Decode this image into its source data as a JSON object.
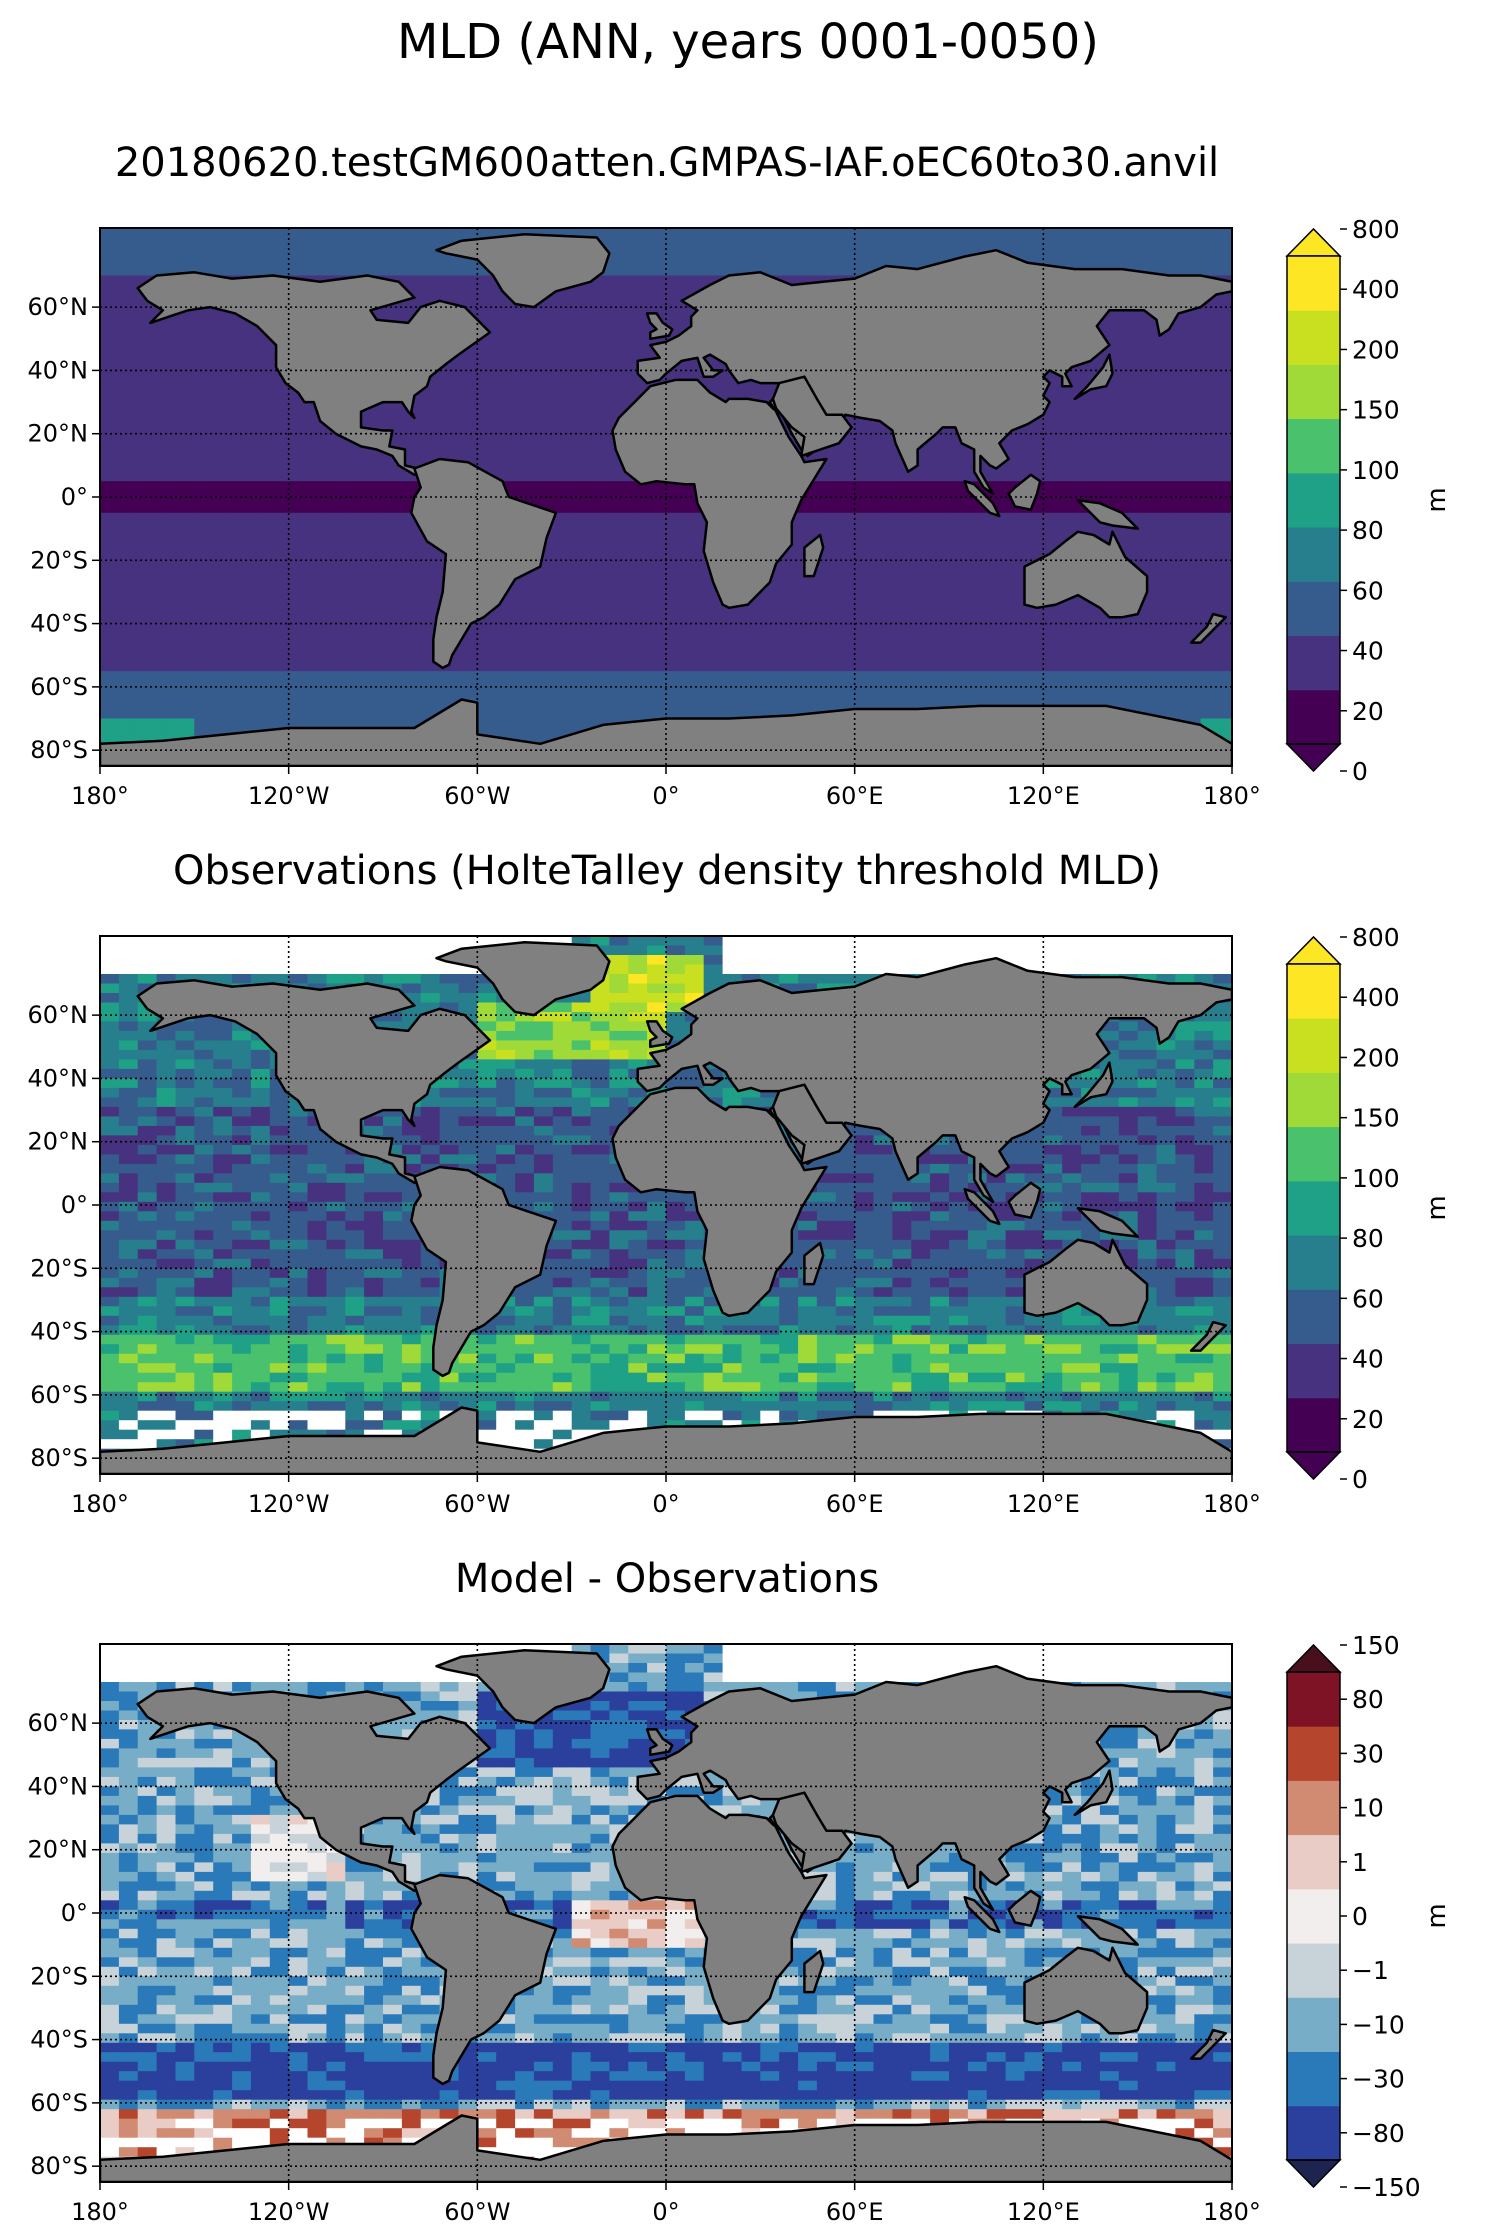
{
  "figure_title": "MLD (ANN, years 0001-0050)",
  "panels": [
    {
      "title": "20180620.testGM600atten.GMPAS-IAF.oEC60to30.anvil",
      "kind": "model"
    },
    {
      "title": "Observations (HolteTalley density threshold MLD)",
      "kind": "obs"
    },
    {
      "title": "Model - Observations",
      "kind": "diff"
    }
  ],
  "map_axes": {
    "lon_ticks": [
      "180°",
      "120°W",
      "60°W",
      "0°",
      "60°E",
      "120°E",
      "180°"
    ],
    "lon_values": [
      -180,
      -120,
      -60,
      0,
      60,
      120,
      180
    ],
    "lat_ticks": [
      "60°N",
      "40°N",
      "20°N",
      "0°",
      "20°S",
      "40°S",
      "60°S",
      "80°S"
    ],
    "lat_values": [
      60,
      40,
      20,
      0,
      -20,
      -40,
      -60,
      -80
    ],
    "lat_range": [
      -85,
      85
    ],
    "lon_range": [
      -180,
      180
    ],
    "gridlines": "dotted"
  },
  "colorbars": [
    {
      "unit": "m",
      "ticks": [
        "800",
        "400",
        "200",
        "150",
        "100",
        "80",
        "60",
        "40",
        "20",
        "0"
      ],
      "colors": [
        "#440154",
        "#46327e",
        "#365c8d",
        "#277f8e",
        "#1fa187",
        "#4ac16d",
        "#a0da39",
        "#c8e020",
        "#fde725"
      ],
      "extend": "both",
      "extend_low_color": "#440154",
      "extend_high_color": "#fde725"
    },
    {
      "unit": "m",
      "ticks": [
        "800",
        "400",
        "200",
        "150",
        "100",
        "80",
        "60",
        "40",
        "20",
        "0"
      ],
      "colors": [
        "#440154",
        "#46327e",
        "#365c8d",
        "#277f8e",
        "#1fa187",
        "#4ac16d",
        "#a0da39",
        "#c8e020",
        "#fde725"
      ],
      "extend": "both",
      "extend_low_color": "#440154",
      "extend_high_color": "#fde725"
    },
    {
      "unit": "m",
      "ticks": [
        "150",
        "80",
        "30",
        "10",
        "1",
        "0",
        "−1",
        "−10",
        "−30",
        "−80",
        "−150"
      ],
      "colors": [
        "#2b3f9d",
        "#2a7ab9",
        "#77adc6",
        "#c7d3d9",
        "#f2eeee",
        "#e8ccc5",
        "#d18b73",
        "#b5462d",
        "#7e1325"
      ],
      "extend": "both",
      "extend_low_color": "#1e2450",
      "extend_high_color": "#4a0f1c"
    }
  ],
  "colors": {
    "land": "#808080",
    "coastline": "#000000",
    "missing": "#ffffff"
  }
}
